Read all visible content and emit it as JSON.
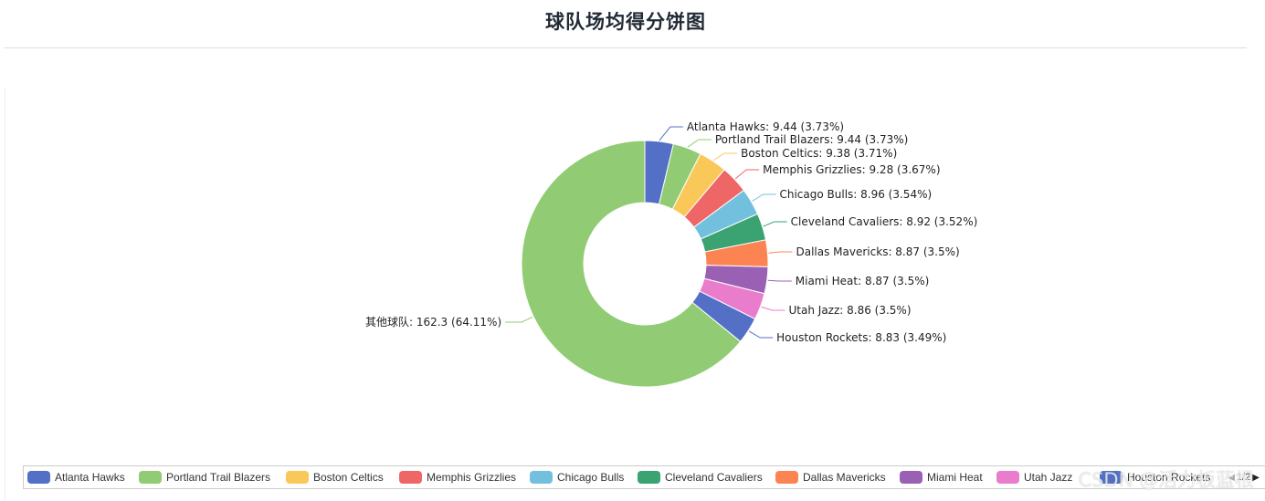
{
  "title": "球队场均得分饼图",
  "watermark": "CSDN @活力板蓝根",
  "chart_data": {
    "type": "pie",
    "variant": "donut",
    "title": "球队场均得分饼图",
    "slices": [
      {
        "name": "Atlanta Hawks",
        "value": 9.44,
        "percent": "3.73%",
        "color": "#5470c6"
      },
      {
        "name": "Portland Trail Blazers",
        "value": 9.44,
        "percent": "3.73%",
        "color": "#91cc75"
      },
      {
        "name": "Boston Celtics",
        "value": 9.38,
        "percent": "3.71%",
        "color": "#fac858"
      },
      {
        "name": "Memphis Grizzlies",
        "value": 9.28,
        "percent": "3.67%",
        "color": "#ee6666"
      },
      {
        "name": "Chicago Bulls",
        "value": 8.96,
        "percent": "3.54%",
        "color": "#73c0de"
      },
      {
        "name": "Cleveland Cavaliers",
        "value": 8.92,
        "percent": "3.52%",
        "color": "#3ba272"
      },
      {
        "name": "Dallas Mavericks",
        "value": 8.87,
        "percent": "3.5%",
        "color": "#fc8452"
      },
      {
        "name": "Miami Heat",
        "value": 8.87,
        "percent": "3.5%",
        "color": "#9a60b4"
      },
      {
        "name": "Utah Jazz",
        "value": 8.86,
        "percent": "3.5%",
        "color": "#ea7ccc"
      },
      {
        "name": "Houston Rockets",
        "value": 8.83,
        "percent": "3.49%",
        "color": "#5470c6"
      },
      {
        "name": "其他球队",
        "value": 162.3,
        "percent": "64.11%",
        "color": "#91cc75"
      }
    ],
    "labels": [
      "Atlanta Hawks: 9.44 (3.73%)",
      "Portland Trail Blazers: 9.44 (3.73%)",
      "Boston Celtics: 9.38 (3.71%)",
      "Memphis Grizzlies: 9.28 (3.67%)",
      "Chicago Bulls: 8.96 (3.54%)",
      "Cleveland Cavaliers: 8.92 (3.52%)",
      "Dallas Mavericks: 8.87 (3.5%)",
      "Miami Heat: 8.87 (3.5%)",
      "Utah Jazz: 8.86 (3.5%)",
      "Houston Rockets: 8.83 (3.49%)",
      "其他球队: 162.3 (64.11%)"
    ],
    "legend_position": "bottom",
    "legend_items": [
      {
        "name": "Atlanta Hawks",
        "color": "#5470c6"
      },
      {
        "name": "Portland Trail Blazers",
        "color": "#91cc75"
      },
      {
        "name": "Boston Celtics",
        "color": "#fac858"
      },
      {
        "name": "Memphis Grizzlies",
        "color": "#ee6666"
      },
      {
        "name": "Chicago Bulls",
        "color": "#73c0de"
      },
      {
        "name": "Cleveland Cavaliers",
        "color": "#3ba272"
      },
      {
        "name": "Dallas Mavericks",
        "color": "#fc8452"
      },
      {
        "name": "Miami Heat",
        "color": "#9a60b4"
      },
      {
        "name": "Utah Jazz",
        "color": "#ea7ccc"
      },
      {
        "name": "Houston Rockets",
        "color": "#5470c6"
      }
    ],
    "legend_page": "1/2"
  }
}
